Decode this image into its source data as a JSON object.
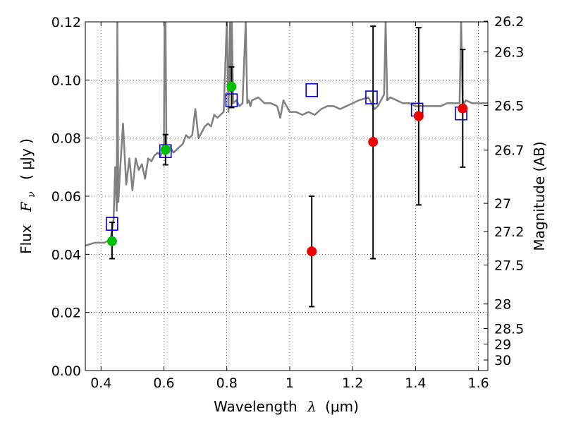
{
  "chart_data": {
    "type": "scatter",
    "xlabel_text": "Wavelength",
    "xlabel_symbol": "λ",
    "xlabel_unit": "(μm)",
    "ylabel_text": "Flux",
    "ylabel_symbol": "F",
    "ylabel_subscript": "ν",
    "ylabel_unit": "( μJy )",
    "y2label": "Magnitude (AB)",
    "xlim": [
      0.35,
      1.63
    ],
    "ylim": [
      0.0,
      0.12
    ],
    "grid": true,
    "x_ticks": [
      {
        "value": 0.4,
        "label": "0.4"
      },
      {
        "value": 0.6,
        "label": "0.6"
      },
      {
        "value": 0.8,
        "label": "0.8"
      },
      {
        "value": 1.0,
        "label": "1"
      },
      {
        "value": 1.2,
        "label": "1.2"
      },
      {
        "value": 1.4,
        "label": "1.4"
      },
      {
        "value": 1.6,
        "label": "1.6"
      }
    ],
    "y_ticks": [
      {
        "value": 0.0,
        "label": "0.00"
      },
      {
        "value": 0.02,
        "label": "0.02"
      },
      {
        "value": 0.04,
        "label": "0.04"
      },
      {
        "value": 0.06,
        "label": "0.06"
      },
      {
        "value": 0.08,
        "label": "0.08"
      },
      {
        "value": 0.1,
        "label": "0.10"
      },
      {
        "value": 0.12,
        "label": "0.12"
      }
    ],
    "mag_ticks": [
      "26.2",
      "26.3",
      "26.5",
      "26.7",
      "27",
      "27.2",
      "27.5",
      "28",
      "28.5",
      "29",
      "30"
    ],
    "colors": {
      "spectrum": "#808080",
      "model": "#0000cc",
      "detection": "#00c000",
      "upper": "#ee0000",
      "errorbar": "#000000"
    },
    "spectrum": {
      "x": [
        0.35,
        0.38,
        0.41,
        0.43,
        0.44,
        0.445,
        0.45,
        0.452,
        0.455,
        0.46,
        0.47,
        0.48,
        0.49,
        0.5,
        0.51,
        0.52,
        0.53,
        0.54,
        0.55,
        0.56,
        0.57,
        0.58,
        0.59,
        0.6,
        0.602,
        0.605,
        0.608,
        0.61,
        0.62,
        0.63,
        0.64,
        0.65,
        0.66,
        0.67,
        0.68,
        0.69,
        0.7,
        0.71,
        0.72,
        0.73,
        0.74,
        0.75,
        0.76,
        0.77,
        0.78,
        0.79,
        0.8,
        0.805,
        0.81,
        0.813,
        0.816,
        0.82,
        0.83,
        0.84,
        0.85,
        0.86,
        0.865,
        0.87,
        0.875,
        0.88,
        0.9,
        0.92,
        0.94,
        0.96,
        0.97,
        0.98,
        1.0,
        1.02,
        1.04,
        1.06,
        1.08,
        1.1,
        1.12,
        1.14,
        1.16,
        1.18,
        1.2,
        1.22,
        1.25,
        1.26,
        1.27,
        1.28,
        1.3,
        1.305,
        1.31,
        1.32,
        1.34,
        1.36,
        1.38,
        1.4,
        1.42,
        1.45,
        1.48,
        1.5,
        1.52,
        1.54,
        1.545,
        1.55,
        1.555,
        1.56,
        1.58,
        1.6,
        1.63
      ],
      "y": [
        0.043,
        0.044,
        0.044,
        0.045,
        0.052,
        0.07,
        0.055,
        0.12,
        0.058,
        0.068,
        0.085,
        0.064,
        0.073,
        0.062,
        0.073,
        0.069,
        0.071,
        0.066,
        0.073,
        0.072,
        0.074,
        0.075,
        0.074,
        0.076,
        0.12,
        0.12,
        0.076,
        0.076,
        0.077,
        0.075,
        0.076,
        0.077,
        0.078,
        0.081,
        0.08,
        0.081,
        0.09,
        0.08,
        0.082,
        0.084,
        0.085,
        0.084,
        0.088,
        0.087,
        0.088,
        0.089,
        0.12,
        0.089,
        0.12,
        0.096,
        0.12,
        0.092,
        0.093,
        0.091,
        0.092,
        0.12,
        0.092,
        0.093,
        0.091,
        0.093,
        0.094,
        0.092,
        0.092,
        0.091,
        0.087,
        0.093,
        0.089,
        0.089,
        0.088,
        0.089,
        0.088,
        0.09,
        0.091,
        0.091,
        0.09,
        0.091,
        0.092,
        0.093,
        0.094,
        0.092,
        0.09,
        0.091,
        0.095,
        0.12,
        0.093,
        0.094,
        0.093,
        0.092,
        0.092,
        0.091,
        0.091,
        0.091,
        0.091,
        0.092,
        0.092,
        0.092,
        0.12,
        0.093,
        0.092,
        0.093,
        0.092,
        0.092,
        0.092
      ]
    },
    "model_points": {
      "x": [
        0.435,
        0.605,
        0.815,
        1.07,
        1.26,
        1.405,
        1.545
      ],
      "y": [
        0.0505,
        0.0755,
        0.093,
        0.0965,
        0.094,
        0.0898,
        0.0885
      ]
    },
    "detections": {
      "x": [
        0.435,
        0.605,
        0.815
      ],
      "y": [
        0.0445,
        0.076,
        0.0977
      ],
      "err_low": [
        0.0385,
        0.0708,
        0.0905
      ],
      "err_high": [
        0.051,
        0.0812,
        0.1045
      ]
    },
    "upper_limits": {
      "x": [
        1.07,
        1.265,
        1.41,
        1.55
      ],
      "y": [
        0.041,
        0.0787,
        0.0876,
        0.0902
      ],
      "err_low": [
        0.022,
        0.0385,
        0.057,
        0.07
      ],
      "err_high": [
        0.06,
        0.1185,
        0.118,
        0.1105
      ]
    }
  }
}
